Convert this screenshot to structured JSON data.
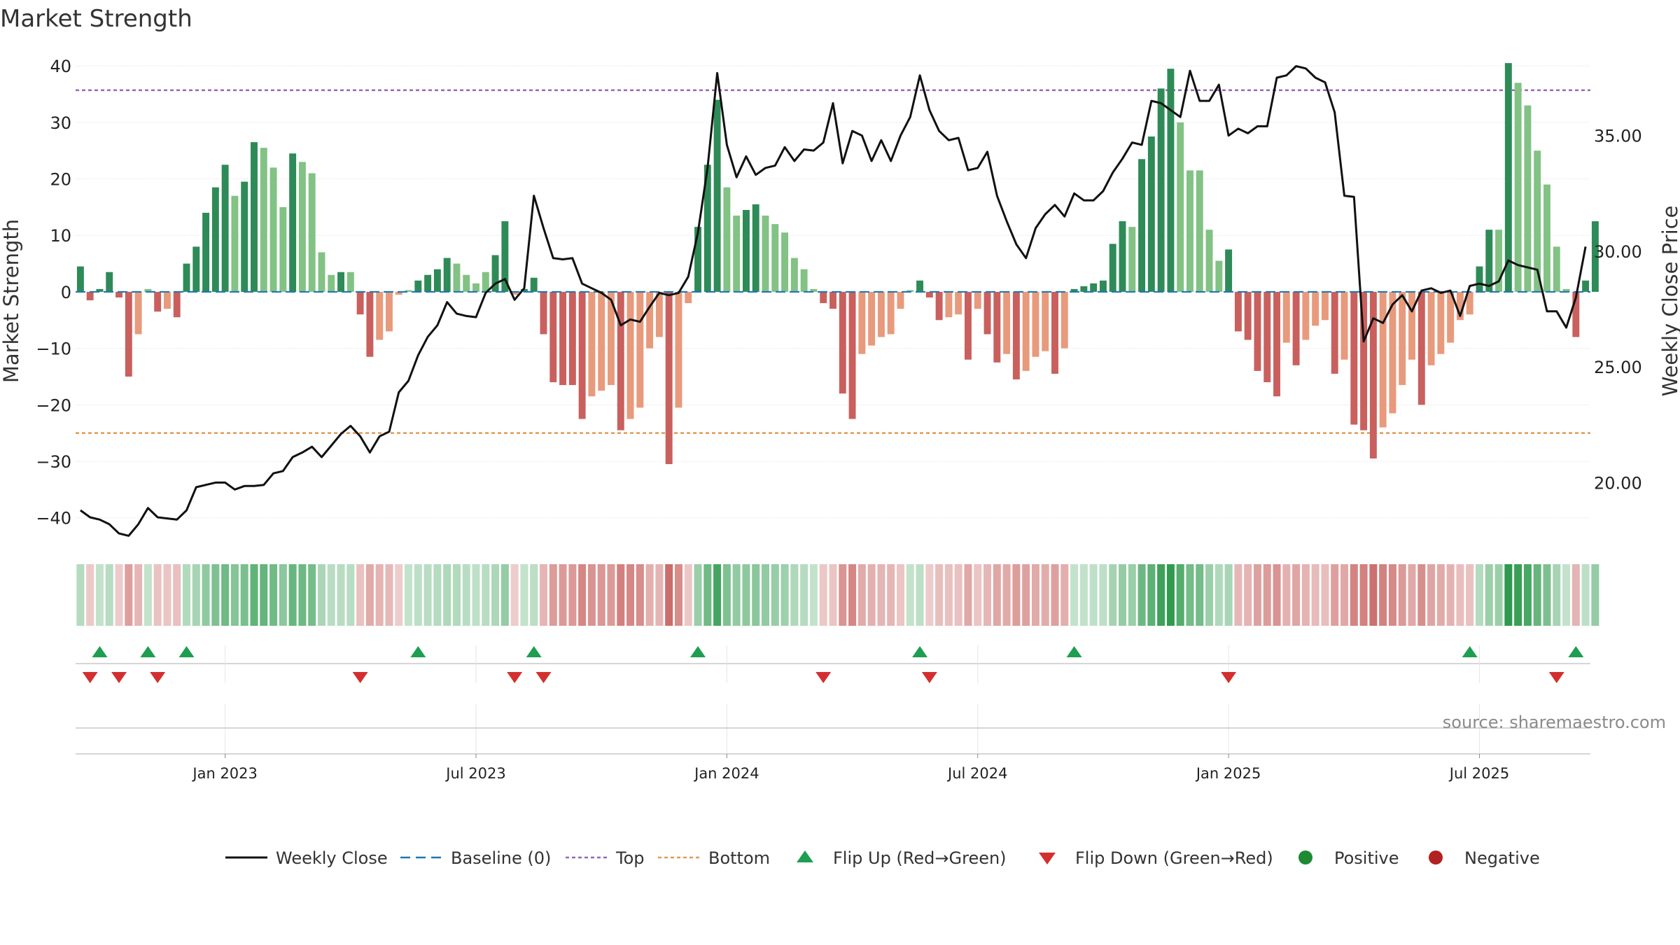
{
  "chart_data": {
    "type": "bar",
    "title": "Market Strength",
    "ylabel": "Market Strength",
    "y2label": "Weekly Close Price",
    "ylim": [
      -44,
      42
    ],
    "y2lim": [
      17.5,
      38.5
    ],
    "yticks": [
      40,
      30,
      20,
      10,
      0,
      -10,
      -20,
      -30,
      -40
    ],
    "ytick_labels": [
      "40",
      "30",
      "20",
      "10",
      "0",
      "−10",
      "−20",
      "−30",
      "−40"
    ],
    "y2ticks": [
      35,
      30,
      25,
      20
    ],
    "y2tick_labels": [
      "35.00",
      "30.00",
      "25.00",
      "20.00"
    ],
    "top_line": 35.7,
    "bottom_line": -25,
    "xlim": [
      -0.5,
      156.5
    ],
    "xticks": [
      15,
      41,
      67,
      93,
      119,
      145
    ],
    "xtick_labels": [
      "Jan 2023",
      "Jul 2023",
      "Jan 2024",
      "Jul 2024",
      "Jan 2025",
      "Jul 2025"
    ],
    "colors": {
      "green_dark": "#2e8b57",
      "green_light": "#82c284",
      "red_dark": "#c9605e",
      "red_light": "#e89a7c",
      "baseline": "#1f77b4",
      "top": "#9467bd",
      "bottom": "#e39a52",
      "close": "#111111",
      "flip_up": "#1e9e50",
      "flip_down": "#d32f2f",
      "positive": "#1e8a34",
      "negative": "#b22222"
    },
    "series": [
      {
        "name": "Market Strength",
        "values": [
          4.5,
          -1.5,
          0.5,
          3.5,
          -1,
          -15,
          -7.5,
          0.5,
          -3.5,
          -3,
          -4.5,
          5,
          8,
          14,
          18.5,
          22.5,
          17,
          19.5,
          26.5,
          25.5,
          22,
          15,
          24.5,
          23,
          21,
          7,
          3,
          3.5,
          3.5,
          -4,
          -11.5,
          -8.5,
          -7,
          -0.5,
          0.3,
          2,
          3,
          4,
          6,
          5,
          3,
          1.5,
          3.5,
          6.5,
          12.5,
          -0.5,
          0.5,
          2.5,
          -7.5,
          -16,
          -16.5,
          -16.5,
          -22.5,
          -18.5,
          -17.5,
          -16.5,
          -24.5,
          -22.5,
          -20.5,
          -10,
          -8,
          -30.5,
          -20.5,
          -2,
          11.5,
          22.5,
          34,
          18.5,
          13.5,
          14.5,
          15.5,
          13.5,
          12,
          10.5,
          6,
          4,
          0.5,
          -2,
          -3,
          -18,
          -22.5,
          -11,
          -9.5,
          -8,
          -7.5,
          -3,
          0.3,
          2,
          -1,
          -5,
          -4.5,
          -4,
          -12,
          -3,
          -7.5,
          -12.5,
          -11,
          -15.5,
          -14,
          -11.5,
          -10.5,
          -14.5,
          -10,
          0.5,
          1,
          1.5,
          2,
          8.5,
          12.5,
          11.5,
          23.5,
          27.5,
          36,
          39.5,
          30,
          21.5,
          21.5,
          11,
          5.5,
          7.5,
          -7,
          -8.5,
          -14,
          -16,
          -18.5,
          -9,
          -13,
          -8.5,
          -6,
          -5,
          -14.5,
          -12,
          -23.5,
          -24.5,
          -29.5,
          -24,
          -21.5,
          -16.5,
          -12,
          -20,
          -13,
          -11,
          -9,
          -5,
          -4,
          4.5,
          11,
          11,
          40.5,
          37,
          33,
          25,
          19,
          8,
          0.5,
          -8,
          2,
          12.5
        ],
        "colors": [
          "green_dark",
          "red_dark",
          "green_dark",
          "green_dark",
          "red_dark",
          "red_dark",
          "red_light",
          "green_light",
          "red_dark",
          "red_light",
          "red_dark",
          "green_dark",
          "green_dark",
          "green_dark",
          "green_dark",
          "green_dark",
          "green_light",
          "green_dark",
          "green_dark",
          "green_light",
          "green_light",
          "green_light",
          "green_dark",
          "green_light",
          "green_light",
          "green_light",
          "green_light",
          "green_dark",
          "green_light",
          "red_dark",
          "red_dark",
          "red_light",
          "red_light",
          "red_light",
          "green_light",
          "green_dark",
          "green_dark",
          "green_dark",
          "green_dark",
          "green_light",
          "green_light",
          "green_light",
          "green_light",
          "green_dark",
          "green_dark",
          "red_light",
          "green_dark",
          "green_dark",
          "red_dark",
          "red_dark",
          "red_dark",
          "red_dark",
          "red_dark",
          "red_light",
          "red_light",
          "red_light",
          "red_dark",
          "red_light",
          "red_light",
          "red_light",
          "red_light",
          "red_dark",
          "red_light",
          "red_light",
          "green_dark",
          "green_dark",
          "green_dark",
          "green_light",
          "green_light",
          "green_dark",
          "green_dark",
          "green_light",
          "green_light",
          "green_light",
          "green_light",
          "green_light",
          "green_light",
          "red_dark",
          "red_dark",
          "red_dark",
          "red_dark",
          "red_light",
          "red_light",
          "red_light",
          "red_light",
          "red_light",
          "green_light",
          "green_dark",
          "red_dark",
          "red_dark",
          "red_light",
          "red_light",
          "red_dark",
          "red_light",
          "red_dark",
          "red_dark",
          "red_light",
          "red_dark",
          "red_light",
          "red_light",
          "red_light",
          "red_dark",
          "red_light",
          "green_dark",
          "green_dark",
          "green_dark",
          "green_dark",
          "green_dark",
          "green_dark",
          "green_light",
          "green_dark",
          "green_dark",
          "green_dark",
          "green_dark",
          "green_light",
          "green_light",
          "green_light",
          "green_light",
          "green_light",
          "green_dark",
          "red_dark",
          "red_dark",
          "red_dark",
          "red_dark",
          "red_dark",
          "red_light",
          "red_dark",
          "red_light",
          "red_light",
          "red_light",
          "red_dark",
          "red_light",
          "red_dark",
          "red_dark",
          "red_dark",
          "red_light",
          "red_light",
          "red_light",
          "red_light",
          "red_dark",
          "red_light",
          "red_light",
          "red_light",
          "red_light",
          "red_light",
          "green_dark",
          "green_dark",
          "green_light",
          "green_dark",
          "green_light",
          "green_light",
          "green_light",
          "green_light",
          "green_light",
          "green_light",
          "red_dark",
          "green_dark",
          "green_dark"
        ]
      },
      {
        "name": "Weekly Close",
        "axis": "right",
        "values": [
          18.8,
          18.5,
          18.4,
          18.2,
          17.8,
          17.7,
          18.2,
          18.9,
          18.5,
          18.45,
          18.4,
          18.8,
          19.8,
          19.9,
          20.0,
          20.0,
          19.7,
          19.85,
          19.85,
          19.9,
          20.4,
          20.5,
          21.1,
          21.3,
          21.55,
          21.1,
          21.6,
          22.1,
          22.45,
          22.0,
          21.3,
          22.0,
          22.2,
          23.9,
          24.4,
          25.5,
          26.3,
          26.8,
          27.8,
          27.3,
          27.2,
          27.15,
          28.2,
          28.6,
          28.8,
          27.9,
          28.4,
          32.4,
          31.0,
          29.7,
          29.65,
          29.7,
          28.6,
          28.4,
          28.2,
          27.9,
          26.8,
          27.05,
          26.95,
          27.6,
          28.2,
          28.1,
          28.2,
          28.9,
          30.8,
          33.6,
          37.7,
          34.6,
          33.2,
          34.1,
          33.3,
          33.6,
          33.7,
          34.5,
          33.9,
          34.4,
          34.35,
          34.7,
          36.4,
          33.8,
          35.2,
          35.0,
          33.9,
          34.8,
          33.9,
          35.0,
          35.8,
          37.6,
          36.1,
          35.2,
          34.8,
          34.9,
          33.5,
          33.6,
          34.3,
          32.4,
          31.3,
          30.3,
          29.7,
          31.0,
          31.6,
          32.0,
          31.5,
          32.5,
          32.2,
          32.2,
          32.6,
          33.4,
          34.0,
          34.7,
          34.6,
          36.5,
          36.4,
          36.1,
          35.8,
          37.8,
          36.5,
          36.5,
          37.2,
          35.0,
          35.3,
          35.1,
          35.4,
          35.4,
          37.5,
          37.6,
          38.0,
          37.9,
          37.5,
          37.3,
          36.0,
          32.4,
          32.35,
          26.1,
          27.1,
          26.9,
          27.7,
          28.1,
          27.4,
          28.3,
          28.4,
          28.2,
          28.3,
          27.2,
          28.5,
          28.6,
          28.5,
          28.7,
          29.6,
          29.4,
          29.3,
          29.2,
          27.4,
          27.4,
          26.7,
          28.0,
          30.2
        ]
      }
    ],
    "strength_strip": {
      "name": "Strength heat strip",
      "values_from": "Market Strength"
    },
    "flip_up_weeks": [
      2,
      7,
      11,
      35,
      47,
      64,
      87,
      103,
      144,
      155
    ],
    "flip_down_weeks": [
      1,
      4,
      8,
      29,
      45,
      48,
      77,
      88,
      119,
      153
    ],
    "source_note": "source: sharemaestro.com",
    "legend": [
      {
        "label": "Weekly Close",
        "kind": "line-solid"
      },
      {
        "label": "Baseline (0)",
        "kind": "line-dashed"
      },
      {
        "label": "Top",
        "kind": "line-dotted-top"
      },
      {
        "label": "Bottom",
        "kind": "line-dotted-bottom"
      },
      {
        "label": "Flip Up (Red→Green)",
        "kind": "tri-up"
      },
      {
        "label": "Flip Down (Green→Red)",
        "kind": "tri-down"
      },
      {
        "label": "Positive",
        "kind": "dot-pos"
      },
      {
        "label": "Negative",
        "kind": "dot-neg"
      }
    ]
  }
}
